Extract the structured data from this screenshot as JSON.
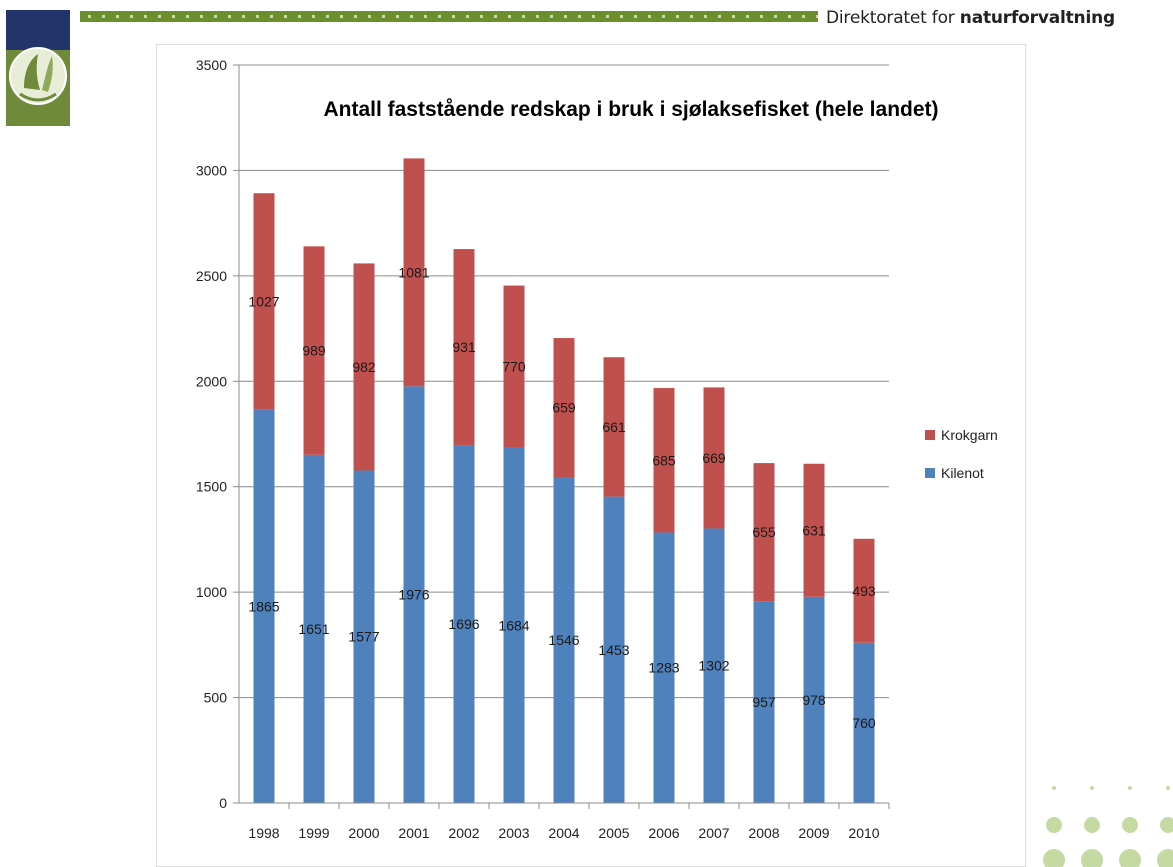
{
  "header": {
    "brand_prefix": "Direktoratet for",
    "brand_name": "naturforvaltning"
  },
  "colors": {
    "krokgarn": "#C0504D",
    "kilenot": "#4F81BD",
    "stripe": "#6B8E2E",
    "logo_green": "#6E8A3A",
    "logo_navy": "#23346B"
  },
  "chart_data": {
    "type": "bar",
    "stacked": true,
    "title": "Antall faststående redskap i bruk i sjølaksefisket (hele landet)",
    "categories": [
      "1998",
      "1999",
      "2000",
      "2001",
      "2002",
      "2003",
      "2004",
      "2005",
      "2006",
      "2007",
      "2008",
      "2009",
      "2010"
    ],
    "series": [
      {
        "name": "Kilenot",
        "values": [
          1865,
          1651,
          1577,
          1976,
          1696,
          1684,
          1546,
          1453,
          1283,
          1302,
          957,
          978,
          760
        ]
      },
      {
        "name": "Krokgarn",
        "values": [
          1027,
          989,
          982,
          1081,
          931,
          770,
          659,
          661,
          685,
          669,
          655,
          631,
          493
        ]
      }
    ],
    "ylim": [
      0,
      3500
    ],
    "yticks": [
      0,
      500,
      1000,
      1500,
      2000,
      2500,
      3000,
      3500
    ],
    "grid": true,
    "legend_position": "right",
    "legend_order": [
      "Krokgarn",
      "Kilenot"
    ]
  }
}
